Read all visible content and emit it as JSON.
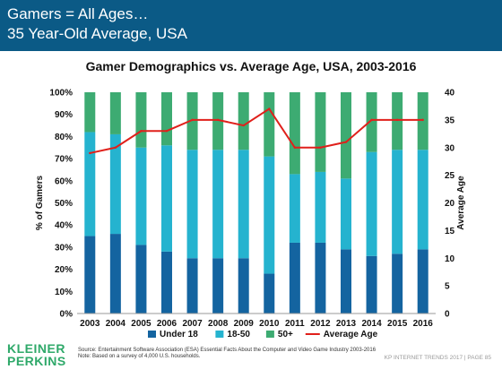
{
  "header": {
    "line1": "Gamers = All Ages…",
    "line2": "35 Year-Old Average, USA"
  },
  "logo": {
    "line1": "KLEINER",
    "line2": "PERKINS"
  },
  "footer": {
    "source_line1": "Source: Entertainment Software Association (ESA) Essential Facts About the Computer and Video Game Industry 2003-2016",
    "source_line2": "Note: Based on a survey of 4,000 U.S. households.",
    "right": "KP INTERNET TRENDS 2017  |  PAGE 85"
  },
  "colors": {
    "header_bg": "#0b5a86",
    "under18": "#1464a0",
    "age18_50": "#25b3cf",
    "age50plus": "#3dab72",
    "average_age": "#e0201b",
    "logo": "#2fa96a"
  },
  "chart_data": {
    "type": "bar",
    "stacked": true,
    "title": "Gamer Demographics vs. Average Age, USA, 2003-2016",
    "ylabel": "% of Gamers",
    "y2label": "Average Age",
    "categories": [
      "2003",
      "2004",
      "2005",
      "2006",
      "2007",
      "2008",
      "2009",
      "2010",
      "2011",
      "2012",
      "2013",
      "2014",
      "2015",
      "2016"
    ],
    "ylim": [
      0,
      100
    ],
    "yticks": [
      "0%",
      "10%",
      "20%",
      "30%",
      "40%",
      "50%",
      "60%",
      "70%",
      "80%",
      "90%",
      "100%"
    ],
    "y2lim": [
      0,
      40
    ],
    "y2ticks": [
      "0",
      "5",
      "10",
      "15",
      "20",
      "25",
      "30",
      "35",
      "40"
    ],
    "series": [
      {
        "name": "Under 18",
        "values": [
          35,
          36,
          31,
          28,
          25,
          25,
          25,
          18,
          32,
          32,
          29,
          26,
          27,
          29
        ]
      },
      {
        "name": "18-50",
        "values": [
          47,
          45,
          44,
          48,
          49,
          49,
          49,
          53,
          31,
          32,
          32,
          47,
          47,
          45
        ]
      },
      {
        "name": "50+",
        "values": [
          18,
          19,
          25,
          24,
          26,
          26,
          26,
          29,
          37,
          36,
          39,
          27,
          26,
          26
        ]
      }
    ],
    "line_series": {
      "name": "Average Age",
      "axis": "right",
      "values": [
        29,
        30,
        33,
        33,
        35,
        35,
        34,
        37,
        30,
        30,
        31,
        35,
        35,
        35
      ]
    },
    "legend_position": "bottom"
  }
}
